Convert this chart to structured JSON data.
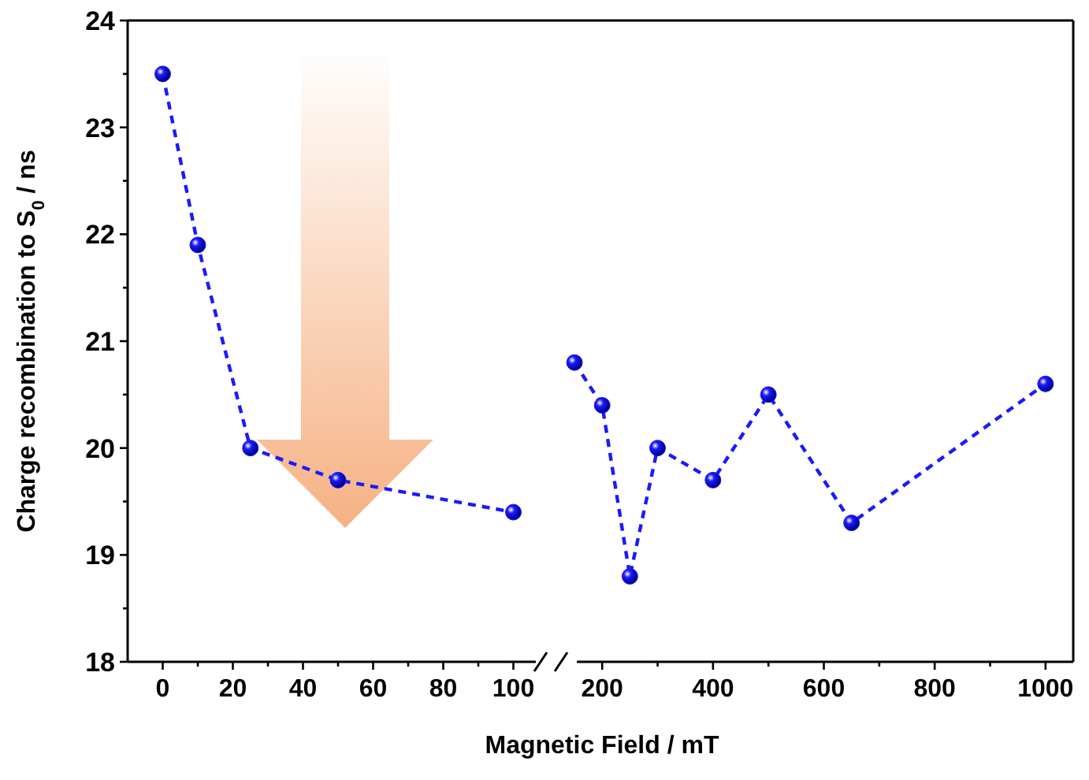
{
  "chart_data": [
    {
      "type": "line",
      "ylabel": "Charge recombination to S$_{0}$ / ns",
      "xlabel": "Magnetic Field / mT",
      "marker": "circle",
      "line_style": "dashed",
      "xlim": [
        -10,
        110
      ],
      "xticks": [
        0,
        {
          "value": 10,
          "label": null
        },
        20,
        {
          "value": 30,
          "label": null
        },
        40,
        {
          "value": 50,
          "label": null
        },
        60,
        {
          "value": 70,
          "label": null
        },
        80,
        {
          "value": 90,
          "label": null
        },
        100
      ],
      "ylim": [
        18,
        24
      ],
      "yticks": [
        18,
        {
          "value": 18.5,
          "label": null
        },
        19,
        {
          "value": 19.5,
          "label": null
        },
        20,
        {
          "value": 20.5,
          "label": null
        },
        21,
        {
          "value": 21.5,
          "label": null
        },
        22,
        {
          "value": 22.5,
          "label": null
        },
        23,
        {
          "value": 23.5,
          "label": null
        },
        24
      ],
      "series": [
        {
          "color": "#1a1aff",
          "x": [
            0,
            10,
            25,
            50,
            100
          ],
          "values": [
            23.5,
            21.9,
            20.0,
            19.7,
            19.4
          ]
        }
      ]
    },
    {
      "type": "line",
      "marker": "circle",
      "line_style": "dashed",
      "tick_labels": "x",
      "xlim": [
        140,
        1050
      ],
      "xticks": [
        200,
        {
          "value": 300,
          "label": null
        },
        400,
        {
          "value": 500,
          "label": null
        },
        600,
        {
          "value": 700,
          "label": null
        },
        800,
        {
          "value": 900,
          "label": null
        },
        1000
      ],
      "ylim": [
        18,
        24
      ],
      "series": [
        {
          "color": "#1a1aff",
          "x": [
            150,
            200,
            250,
            300,
            400,
            500,
            650,
            1000
          ],
          "values": [
            20.8,
            20.4,
            18.8,
            20.0,
            19.7,
            20.5,
            19.3,
            20.6
          ]
        }
      ]
    }
  ]
}
